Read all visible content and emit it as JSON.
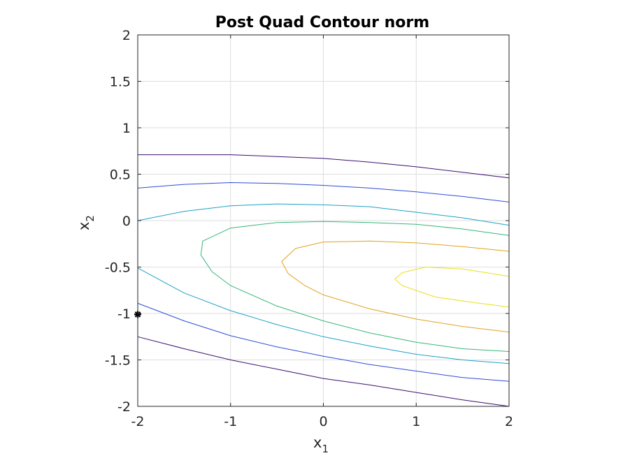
{
  "chart_data": {
    "type": "contour",
    "title": "Post Quad Contour norm",
    "xlabel": "x",
    "xlabel_sub": "1",
    "ylabel": "x",
    "ylabel_sub": "2",
    "xlim": [
      -2,
      2
    ],
    "ylim": [
      -2,
      2
    ],
    "grid": true,
    "xticks": [
      -2,
      -1,
      0,
      1,
      2
    ],
    "yticks": [
      -2,
      -1.5,
      -1,
      -0.5,
      0,
      0.5,
      1,
      1.5,
      2
    ],
    "xtick_labels": [
      "-2",
      "-1",
      "0",
      "1",
      "2"
    ],
    "ytick_labels": [
      "-2",
      "-1.5",
      "-1",
      "-0.5",
      "0",
      "0.5",
      "1",
      "1.5",
      "2"
    ],
    "contour_lines": [
      {
        "color": "#3b0f70",
        "segments": [
          [
            [
              -2,
              0.71
            ],
            [
              -1.5,
              0.71
            ],
            [
              -1,
              0.71
            ],
            [
              -0.5,
              0.69
            ],
            [
              0,
              0.67
            ],
            [
              0.5,
              0.63
            ],
            [
              1,
              0.58
            ],
            [
              1.5,
              0.52
            ],
            [
              2,
              0.46
            ]
          ],
          [
            [
              -2,
              -1.25
            ],
            [
              -1.5,
              -1.38
            ],
            [
              -1,
              -1.5
            ],
            [
              -0.5,
              -1.6
            ],
            [
              0,
              -1.7
            ],
            [
              0.5,
              -1.77
            ],
            [
              1,
              -1.85
            ],
            [
              1.5,
              -1.93
            ],
            [
              2,
              -2.0
            ]
          ]
        ]
      },
      {
        "color": "#2e4bd8",
        "segments": [
          [
            [
              -2,
              0.35
            ],
            [
              -1.5,
              0.39
            ],
            [
              -1,
              0.41
            ],
            [
              -0.5,
              0.4
            ],
            [
              0,
              0.38
            ],
            [
              0.5,
              0.35
            ],
            [
              1,
              0.31
            ],
            [
              1.5,
              0.26
            ],
            [
              2,
              0.2
            ]
          ],
          [
            [
              -2,
              -0.89
            ],
            [
              -1.5,
              -1.08
            ],
            [
              -1,
              -1.24
            ],
            [
              -0.5,
              -1.36
            ],
            [
              0,
              -1.46
            ],
            [
              0.5,
              -1.55
            ],
            [
              1,
              -1.62
            ],
            [
              1.5,
              -1.69
            ],
            [
              2,
              -1.73
            ]
          ]
        ]
      },
      {
        "color": "#1fa0c8",
        "segments": [
          [
            [
              -2,
              0.0
            ],
            [
              -1.5,
              0.1
            ],
            [
              -1,
              0.16
            ],
            [
              -0.5,
              0.18
            ],
            [
              0,
              0.17
            ],
            [
              0.5,
              0.15
            ],
            [
              1,
              0.09
            ],
            [
              1.5,
              0.03
            ],
            [
              2,
              -0.05
            ]
          ],
          [
            [
              -2,
              -0.51
            ],
            [
              -1.5,
              -0.78
            ],
            [
              -1,
              -0.97
            ],
            [
              -0.5,
              -1.12
            ],
            [
              0,
              -1.25
            ],
            [
              0.5,
              -1.35
            ],
            [
              1,
              -1.44
            ],
            [
              1.5,
              -1.5
            ],
            [
              2,
              -1.54
            ]
          ]
        ]
      },
      {
        "color": "#35b779",
        "segments": [
          [
            [
              2,
              -0.16
            ],
            [
              1.5,
              -0.09
            ],
            [
              1,
              -0.04
            ],
            [
              0.5,
              -0.02
            ],
            [
              0,
              -0.01
            ],
            [
              -0.5,
              -0.02
            ],
            [
              -1,
              -0.08
            ],
            [
              -1.3,
              -0.22
            ],
            [
              -1.32,
              -0.37
            ],
            [
              -1.2,
              -0.55
            ],
            [
              -1,
              -0.7
            ],
            [
              -0.5,
              -0.92
            ],
            [
              0,
              -1.08
            ],
            [
              0.5,
              -1.21
            ],
            [
              1,
              -1.31
            ],
            [
              1.5,
              -1.38
            ],
            [
              2,
              -1.41
            ]
          ]
        ]
      },
      {
        "color": "#e1a21d",
        "segments": [
          [
            [
              2,
              -0.33
            ],
            [
              1.5,
              -0.28
            ],
            [
              1,
              -0.24
            ],
            [
              0.5,
              -0.22
            ],
            [
              0,
              -0.23
            ],
            [
              -0.3,
              -0.3
            ],
            [
              -0.45,
              -0.44
            ],
            [
              -0.38,
              -0.57
            ],
            [
              -0.2,
              -0.7
            ],
            [
              0,
              -0.8
            ],
            [
              0.5,
              -0.95
            ],
            [
              1,
              -1.06
            ],
            [
              1.5,
              -1.14
            ],
            [
              2,
              -1.2
            ]
          ]
        ]
      },
      {
        "color": "#e8e01a",
        "segments": [
          [
            [
              2,
              -0.6
            ],
            [
              1.5,
              -0.52
            ],
            [
              1.1,
              -0.5
            ],
            [
              0.85,
              -0.56
            ],
            [
              0.77,
              -0.63
            ],
            [
              0.85,
              -0.7
            ],
            [
              1.2,
              -0.82
            ],
            [
              1.6,
              -0.88
            ],
            [
              2,
              -0.93
            ]
          ]
        ]
      }
    ],
    "markers": [
      {
        "x": -2,
        "y": -1.01,
        "symbol": "asterisk",
        "color": "#000000"
      }
    ]
  }
}
